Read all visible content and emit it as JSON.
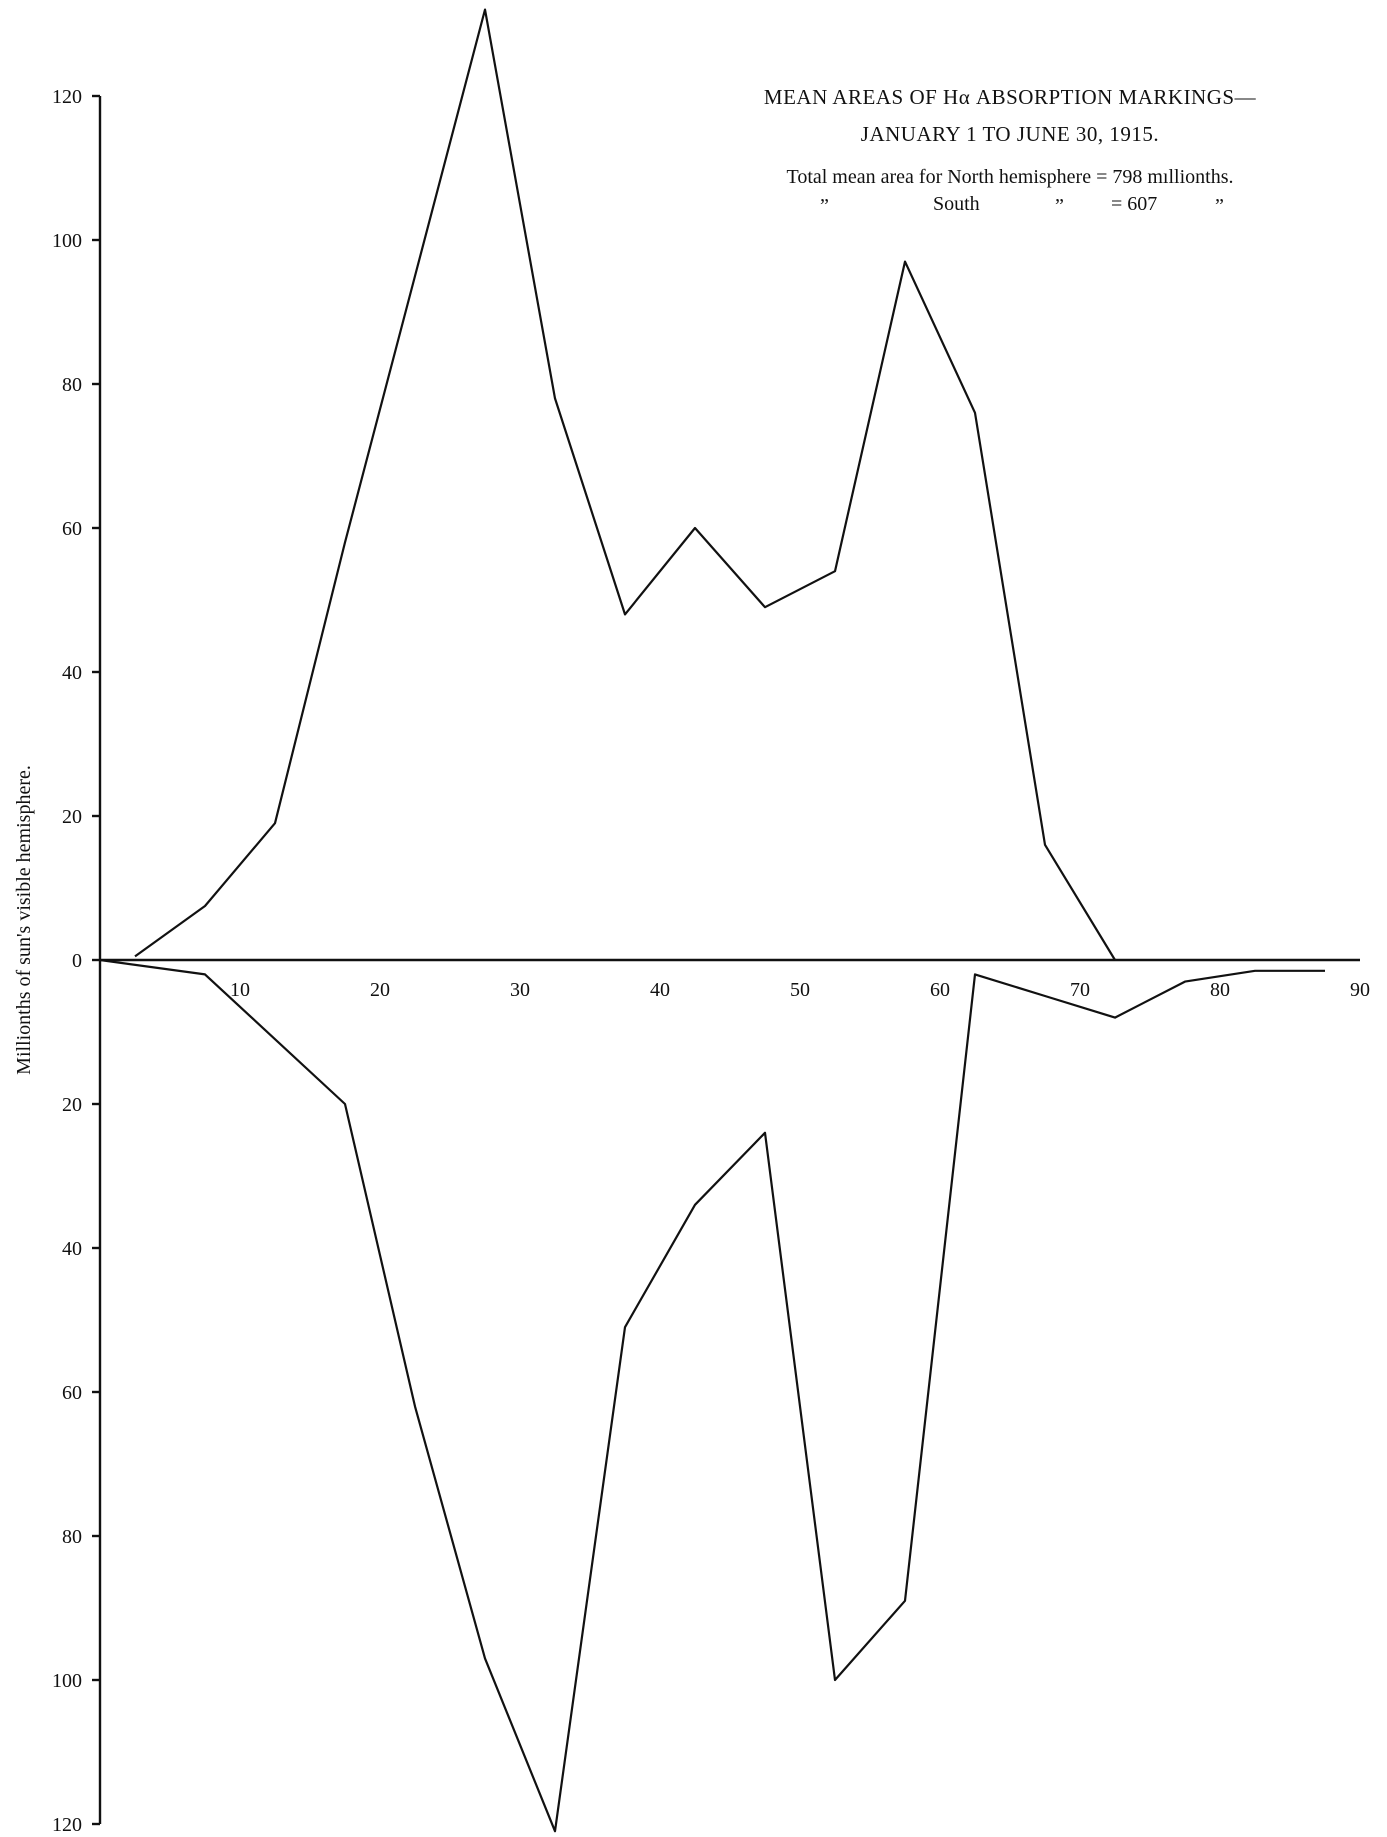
{
  "chart_data": {
    "type": "line",
    "title_line1": "MEAN AREAS OF Hα ABSORPTION MARKINGS—",
    "title_line2": "JANUARY 1 TO JUNE 30, 1915.",
    "note_line1": "Total mean area for North hemisphere = 798 mıllionths.",
    "note_line2": {
      "ditto1": "”",
      "label": "South",
      "ditto2": "”",
      "value": "= 607",
      "ditto3": "”"
    },
    "ylabel": "Millionths of sun's visible hemisphere.",
    "xlabel": "",
    "x_ticks": [
      "10",
      "20",
      "30",
      "40",
      "50",
      "60",
      "70",
      "80",
      "90"
    ],
    "y_ticks_upper": [
      "120",
      "100",
      "80",
      "60",
      "40",
      "20",
      "0"
    ],
    "y_ticks_lower": [
      "20",
      "40",
      "60",
      "80",
      "100",
      "120"
    ],
    "xlim": [
      0,
      90
    ],
    "ylim": [
      -120,
      120
    ],
    "series": [
      {
        "hemisphere": "north",
        "x": [
          2.5,
          7.5,
          12.5,
          17.5,
          22.5,
          27.5,
          32.5,
          37.5,
          42.5,
          47.5,
          52.5,
          57.5,
          62.5,
          67.5,
          72.5
        ],
        "y": [
          0.5,
          7.5,
          19,
          58,
          95,
          132,
          78,
          48,
          60,
          49,
          54,
          97,
          76,
          16,
          0
        ]
      },
      {
        "hemisphere": "south",
        "x": [
          0,
          7.5,
          17.5,
          22.5,
          27.5,
          32.5,
          37.5,
          42.5,
          47.5,
          52.5,
          57.5,
          62.5,
          67.5,
          72.5,
          77.5,
          82.5,
          87.5
        ],
        "y": [
          0,
          -2,
          -20,
          -62,
          -97,
          -121,
          -51,
          -34,
          -24,
          -100,
          -89,
          -2,
          -5,
          -8,
          -3,
          -1.5,
          -1.5
        ]
      }
    ]
  }
}
